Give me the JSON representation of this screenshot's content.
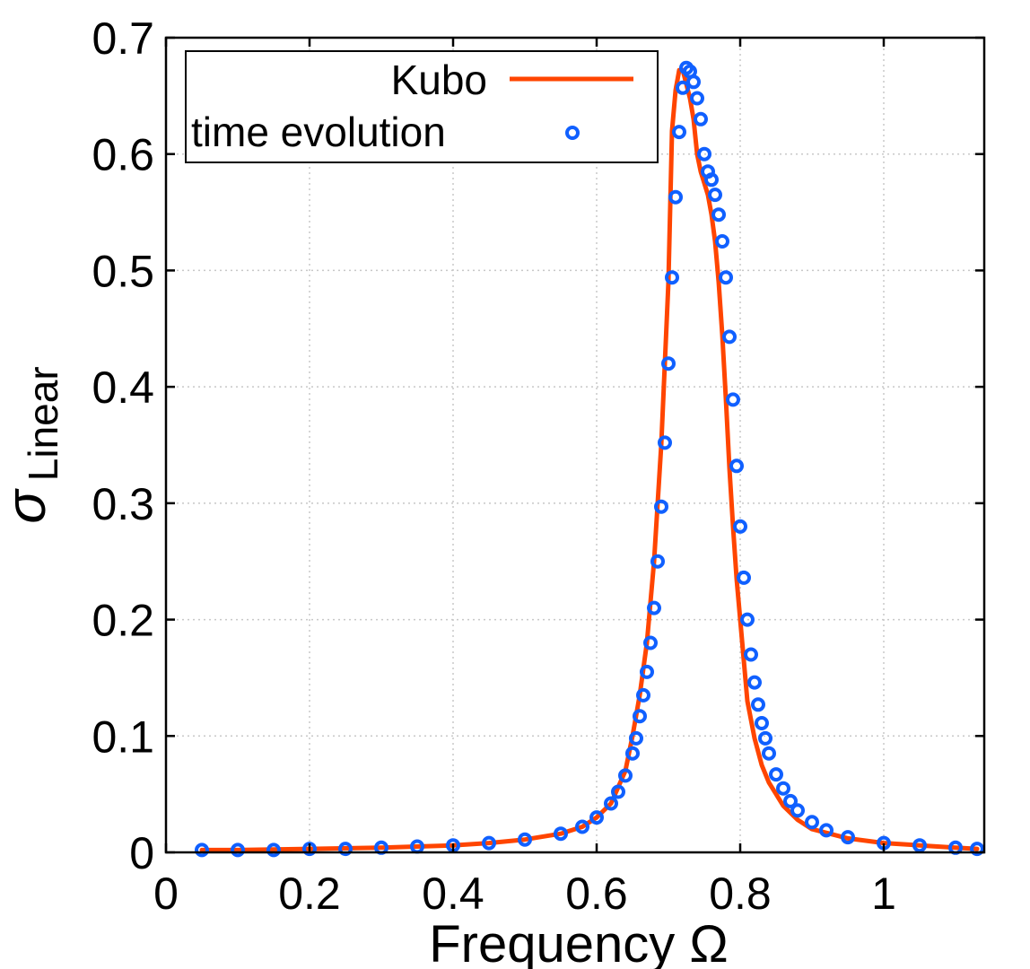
{
  "chart_data": {
    "type": "line",
    "xlabel": "Frequency  Ω",
    "ylabel_symbol": "σ",
    "ylabel_subscript": "Linear",
    "xlim": [
      0,
      1.14
    ],
    "ylim": [
      0,
      0.7
    ],
    "grid": true,
    "legend_position": "top-left",
    "x_ticks": [
      {
        "value": 0,
        "label": "0"
      },
      {
        "value": 0.2,
        "label": "0.2"
      },
      {
        "value": 0.4,
        "label": "0.4"
      },
      {
        "value": 0.6,
        "label": "0.6"
      },
      {
        "value": 0.8,
        "label": "0.8"
      },
      {
        "value": 1,
        "label": "1"
      }
    ],
    "y_ticks": [
      {
        "value": 0,
        "label": "0"
      },
      {
        "value": 0.1,
        "label": "0.1"
      },
      {
        "value": 0.2,
        "label": "0.2"
      },
      {
        "value": 0.3,
        "label": "0.3"
      },
      {
        "value": 0.4,
        "label": "0.4"
      },
      {
        "value": 0.5,
        "label": "0.5"
      },
      {
        "value": 0.6,
        "label": "0.6"
      },
      {
        "value": 0.7,
        "label": "0.7"
      }
    ],
    "series": [
      {
        "name": "Kubo",
        "style": "line",
        "color": "#ff4500",
        "x": [
          0.05,
          0.1,
          0.2,
          0.3,
          0.4,
          0.45,
          0.5,
          0.55,
          0.58,
          0.6,
          0.62,
          0.64,
          0.65,
          0.66,
          0.67,
          0.68,
          0.69,
          0.7,
          0.705,
          0.71,
          0.715,
          0.72,
          0.725,
          0.73,
          0.735,
          0.74,
          0.745,
          0.75,
          0.755,
          0.76,
          0.765,
          0.77,
          0.775,
          0.78,
          0.785,
          0.79,
          0.795,
          0.8,
          0.81,
          0.82,
          0.83,
          0.84,
          0.85,
          0.86,
          0.88,
          0.9,
          0.95,
          1.0,
          1.05,
          1.1,
          1.13
        ],
        "y": [
          0.002,
          0.002,
          0.003,
          0.004,
          0.006,
          0.008,
          0.011,
          0.016,
          0.022,
          0.03,
          0.042,
          0.07,
          0.1,
          0.135,
          0.18,
          0.25,
          0.35,
          0.49,
          0.62,
          0.655,
          0.672,
          0.672,
          0.66,
          0.648,
          0.63,
          0.6,
          0.585,
          0.575,
          0.565,
          0.548,
          0.525,
          0.49,
          0.445,
          0.39,
          0.33,
          0.28,
          0.235,
          0.2,
          0.13,
          0.098,
          0.075,
          0.06,
          0.05,
          0.04,
          0.028,
          0.02,
          0.012,
          0.008,
          0.006,
          0.004,
          0.003
        ]
      },
      {
        "name": "time evolution",
        "style": "markers",
        "color": "#1060ff",
        "x": [
          0.05,
          0.1,
          0.15,
          0.2,
          0.25,
          0.3,
          0.35,
          0.4,
          0.45,
          0.5,
          0.55,
          0.58,
          0.6,
          0.62,
          0.63,
          0.64,
          0.65,
          0.655,
          0.66,
          0.665,
          0.67,
          0.675,
          0.68,
          0.685,
          0.69,
          0.695,
          0.7,
          0.705,
          0.71,
          0.715,
          0.72,
          0.725,
          0.73,
          0.735,
          0.74,
          0.745,
          0.75,
          0.755,
          0.76,
          0.765,
          0.77,
          0.775,
          0.78,
          0.785,
          0.79,
          0.795,
          0.8,
          0.805,
          0.81,
          0.815,
          0.82,
          0.825,
          0.83,
          0.835,
          0.84,
          0.85,
          0.86,
          0.87,
          0.88,
          0.9,
          0.92,
          0.95,
          1.0,
          1.05,
          1.1,
          1.13
        ],
        "y": [
          0.002,
          0.002,
          0.002,
          0.003,
          0.003,
          0.004,
          0.005,
          0.006,
          0.008,
          0.011,
          0.016,
          0.022,
          0.03,
          0.042,
          0.052,
          0.066,
          0.085,
          0.098,
          0.117,
          0.135,
          0.155,
          0.18,
          0.21,
          0.25,
          0.297,
          0.352,
          0.42,
          0.494,
          0.563,
          0.619,
          0.657,
          0.674,
          0.671,
          0.662,
          0.648,
          0.63,
          0.6,
          0.585,
          0.578,
          0.565,
          0.548,
          0.525,
          0.494,
          0.443,
          0.389,
          0.332,
          0.28,
          0.236,
          0.2,
          0.17,
          0.146,
          0.127,
          0.111,
          0.098,
          0.085,
          0.067,
          0.055,
          0.044,
          0.036,
          0.026,
          0.019,
          0.013,
          0.008,
          0.006,
          0.004,
          0.003
        ]
      }
    ]
  }
}
